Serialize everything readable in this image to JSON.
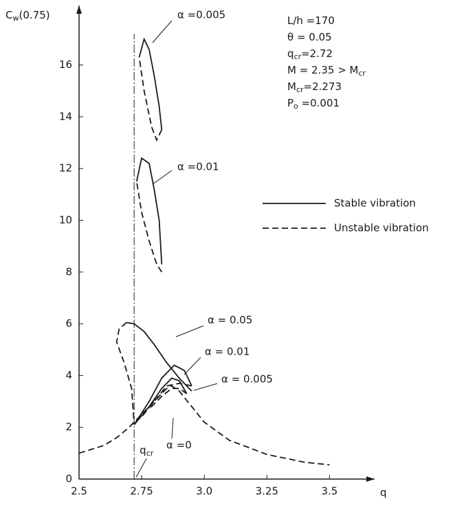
{
  "chart_data": {
    "type": "line",
    "x_label": "q",
    "y_label": [
      "C",
      "w",
      "(0.75)"
    ],
    "xlim": [
      2.5,
      3.68
    ],
    "ylim": [
      0,
      18.3
    ],
    "xticks": [
      2.5,
      2.75,
      {
        "value": 3,
        "label": "3.0"
      },
      3.25,
      3.5
    ],
    "yticks": [
      0,
      2,
      4,
      6,
      8,
      10,
      12,
      14,
      16
    ],
    "color": "#1a1a1a",
    "parameters": [
      [
        "L/h =170"
      ],
      [
        "θ = 0.05"
      ],
      [
        "q",
        "cr",
        "=2.72"
      ],
      [
        "M = 2.35 > M",
        "cr"
      ],
      [
        "M",
        "cr",
        "=2.273"
      ],
      [
        "P",
        "o",
        " =0.001"
      ]
    ],
    "legend": [
      {
        "label": "Stable vibration",
        "style": "solid"
      },
      {
        "label": "Unstable vibration",
        "style": "dashed"
      }
    ],
    "qcr_line": {
      "x": 2.72,
      "label": [
        "q",
        "cr"
      ]
    },
    "curve_labels": [
      "α =0.005",
      "α =0.01",
      "α = 0.05",
      "α = 0.01",
      "α = 0.005",
      "α =0"
    ],
    "series": [
      {
        "style": "dashed",
        "x": [
          2.5,
          2.6,
          2.65,
          2.7,
          2.75,
          2.8,
          2.85,
          2.87,
          2.9,
          2.95,
          3.0,
          3.1,
          3.25,
          3.4,
          3.5
        ],
        "y": [
          1.0,
          1.3,
          1.6,
          2.0,
          2.5,
          3.0,
          3.5,
          3.6,
          3.4,
          2.8,
          2.2,
          1.5,
          0.95,
          0.65,
          0.55
        ]
      },
      {
        "style": "solid",
        "x": [
          2.72,
          2.78,
          2.83,
          2.87,
          2.9,
          2.93
        ],
        "y": [
          2.1,
          2.8,
          3.5,
          3.9,
          3.8,
          3.3
        ]
      },
      {
        "style": "dashed",
        "x": [
          2.93,
          2.9,
          2.87,
          2.83,
          2.78
        ],
        "y": [
          3.3,
          3.5,
          3.5,
          3.2,
          2.7
        ]
      },
      {
        "style": "solid",
        "x": [
          2.72,
          2.78,
          2.83,
          2.88,
          2.92,
          2.95
        ],
        "y": [
          2.1,
          3.0,
          3.9,
          4.4,
          4.2,
          3.6
        ]
      },
      {
        "style": "dashed",
        "x": [
          2.95,
          2.9,
          2.85,
          2.8,
          2.75
        ],
        "y": [
          3.6,
          3.7,
          3.6,
          3.0,
          2.4
        ]
      },
      {
        "style": "solid",
        "x": [
          2.69,
          2.72,
          2.76,
          2.8,
          2.85,
          2.9,
          2.95
        ],
        "y": [
          6.05,
          6.0,
          5.7,
          5.2,
          4.5,
          3.9,
          3.4
        ]
      },
      {
        "style": "dashed",
        "x": [
          2.69,
          2.66,
          2.65,
          2.68,
          2.71,
          2.72
        ],
        "y": [
          6.05,
          5.8,
          5.3,
          4.5,
          3.5,
          2.1
        ]
      },
      {
        "style": "solid",
        "x": [
          2.73,
          2.75,
          2.78,
          2.8,
          2.82,
          2.83
        ],
        "y": [
          11.5,
          12.4,
          12.2,
          11.2,
          10.0,
          8.3
        ]
      },
      {
        "style": "dashed",
        "x": [
          2.83,
          2.81,
          2.78,
          2.75,
          2.73
        ],
        "y": [
          8.0,
          8.3,
          9.2,
          10.3,
          11.5
        ]
      },
      {
        "style": "solid",
        "x": [
          2.74,
          2.76,
          2.78,
          2.8,
          2.82,
          2.83
        ],
        "y": [
          16.3,
          17.0,
          16.6,
          15.6,
          14.4,
          13.5
        ]
      },
      {
        "style": "dashed",
        "x": [
          2.83,
          2.81,
          2.79,
          2.76,
          2.74
        ],
        "y": [
          13.5,
          13.1,
          13.6,
          15.0,
          16.3
        ]
      }
    ]
  }
}
